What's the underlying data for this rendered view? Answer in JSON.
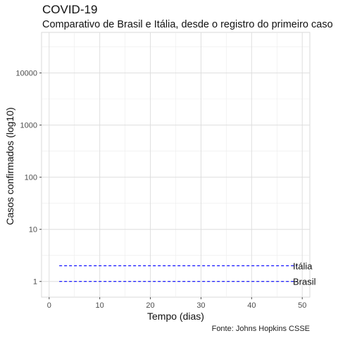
{
  "chart_data": {
    "type": "line",
    "title": "COVID-19",
    "subtitle": "Comparativo de Brasil e Itália, desde o registro do primeiro caso",
    "caption": "Fonte: Johns Hopkins CSSE",
    "xlabel": "Tempo (dias)",
    "ylabel": "Casos confirmados (log10)",
    "x_scale": "linear",
    "y_scale": "log10",
    "xlim": [
      -1.5,
      51.5
    ],
    "ylim": [
      0.5,
      60000
    ],
    "x_ticks": [
      0,
      10,
      20,
      30,
      40,
      50
    ],
    "y_ticks": [
      1,
      10,
      100,
      1000,
      10000
    ],
    "y_tick_labels": [
      "1",
      "10",
      "100",
      "1000",
      "10000"
    ],
    "grid": true,
    "series": [
      {
        "name": "Itália",
        "color": "#0000ff",
        "line_style": "dashed",
        "x": [
          2,
          49
        ],
        "y": [
          2,
          2
        ]
      },
      {
        "name": "Brasil",
        "color": "#0000ff",
        "line_style": "dashed",
        "x": [
          2,
          49
        ],
        "y": [
          1,
          1
        ]
      }
    ]
  }
}
